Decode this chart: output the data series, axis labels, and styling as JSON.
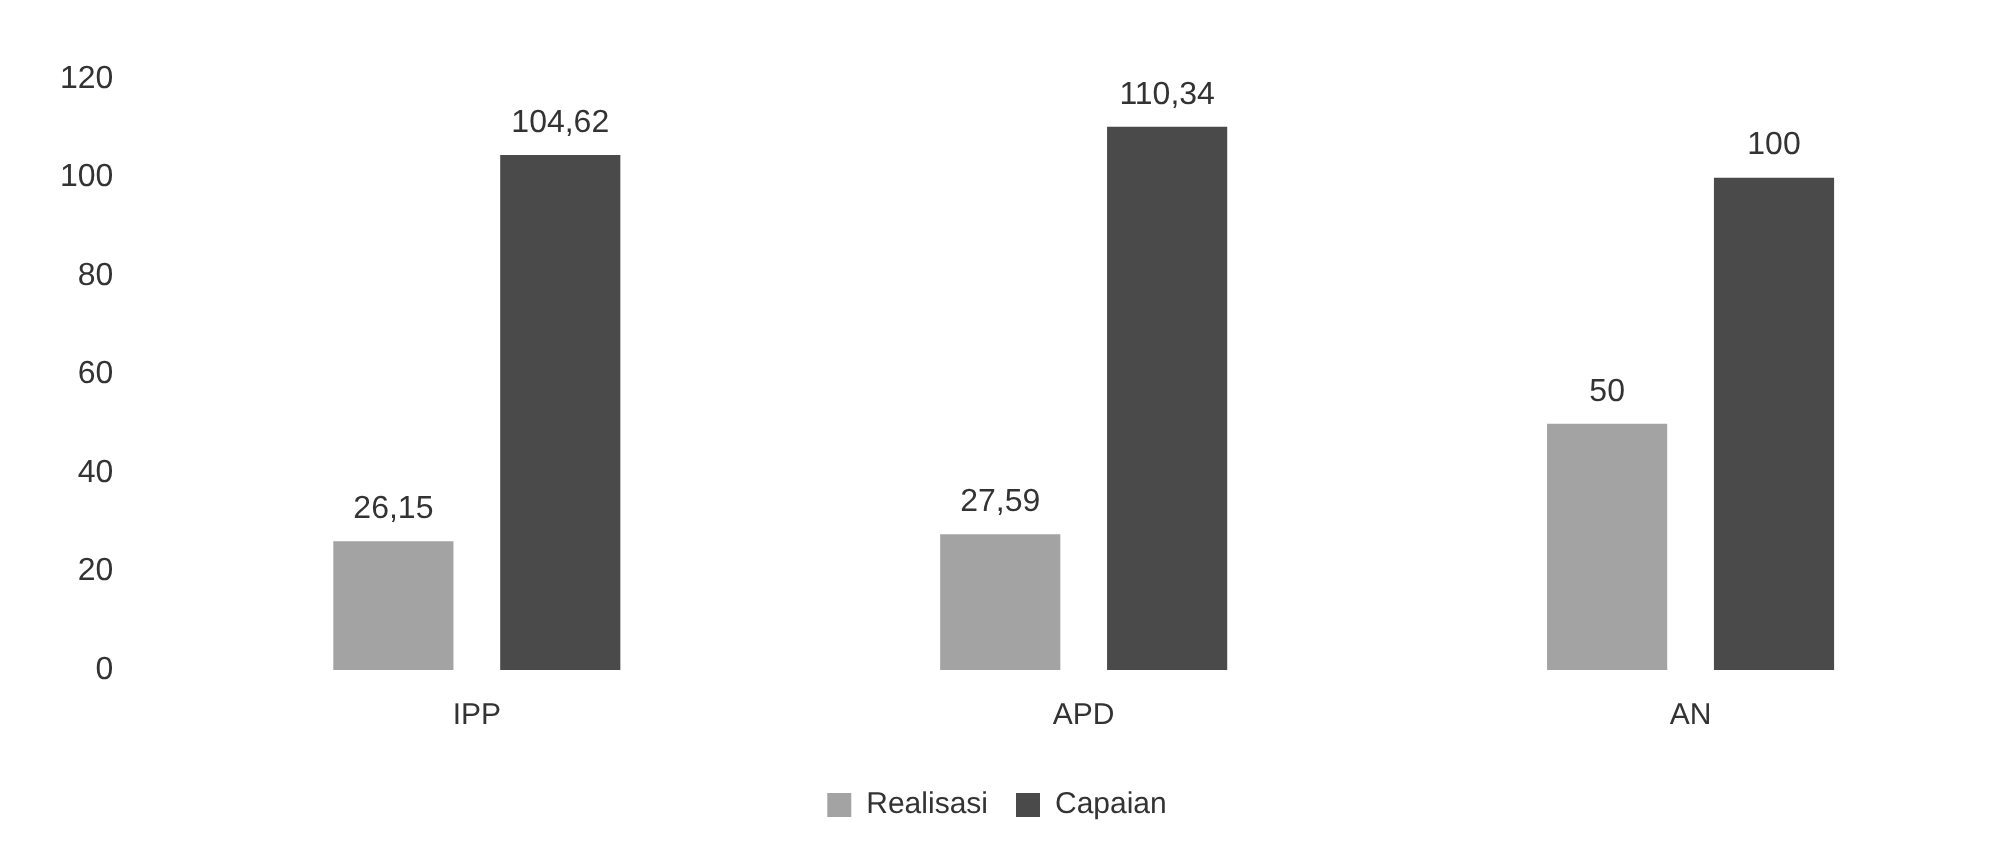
{
  "chart_data": {
    "type": "bar",
    "categories": [
      "IPP",
      "APD",
      "AN"
    ],
    "series": [
      {
        "name": "Realisasi",
        "color": "#a3a3a3",
        "values": [
          26.15,
          27.59,
          50
        ],
        "value_labels": [
          "26,15",
          "27,59",
          "50"
        ]
      },
      {
        "name": "Capaian",
        "color": "#4a4a4a",
        "values": [
          104.62,
          110.34,
          100
        ],
        "value_labels": [
          "104,62",
          "110,34",
          "100"
        ]
      }
    ],
    "ylim": [
      0,
      120
    ],
    "yticks": [
      0,
      20,
      40,
      60,
      80,
      100,
      120
    ],
    "grid": false,
    "legend": "bottom"
  }
}
